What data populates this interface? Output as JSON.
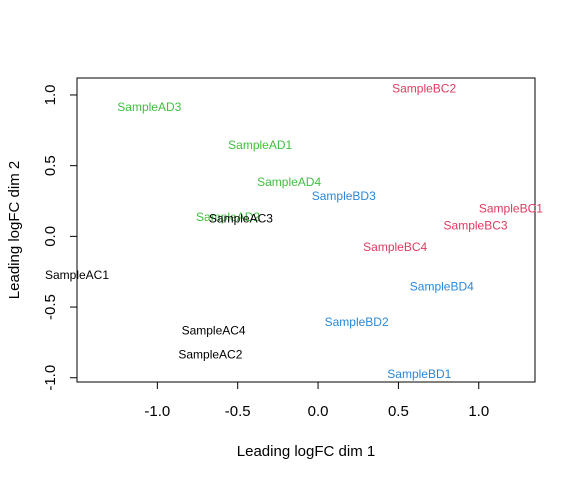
{
  "chart_data": {
    "type": "scatter",
    "title": "",
    "xlabel": "Leading logFC dim 1",
    "ylabel": "Leading logFC dim 2",
    "xlim": [
      -1.5,
      1.35
    ],
    "ylim": [
      -1.03,
      1.12
    ],
    "xticks": [
      "-1.0",
      "-0.5",
      "0.0",
      "0.5",
      "1.0"
    ],
    "yticks": [
      "-1.0",
      "-0.5",
      "0.0",
      "0.5",
      "1.0"
    ],
    "grid": false,
    "legend": "none",
    "colors": {
      "AC": "#000000",
      "AD": "#3fbf3f",
      "BC": "#df3a5f",
      "BD": "#2a88d8"
    },
    "points": [
      {
        "label": "SampleAD3",
        "x": -1.05,
        "y": 0.91,
        "group": "AD"
      },
      {
        "label": "SampleAD1",
        "x": -0.36,
        "y": 0.64,
        "group": "AD"
      },
      {
        "label": "SampleAD4",
        "x": -0.18,
        "y": 0.38,
        "group": "AD"
      },
      {
        "label": "SampleAD2",
        "x": -0.56,
        "y": 0.13,
        "group": "AD"
      },
      {
        "label": "SampleAC3",
        "x": -0.48,
        "y": 0.12,
        "group": "AC"
      },
      {
        "label": "SampleAC1",
        "x": -1.5,
        "y": -0.28,
        "group": "AC"
      },
      {
        "label": "SampleAC4",
        "x": -0.65,
        "y": -0.67,
        "group": "AC"
      },
      {
        "label": "SampleAC2",
        "x": -0.67,
        "y": -0.84,
        "group": "AC"
      },
      {
        "label": "SampleBC2",
        "x": 0.66,
        "y": 1.04,
        "group": "BC"
      },
      {
        "label": "SampleBC1",
        "x": 1.2,
        "y": 0.19,
        "group": "BC"
      },
      {
        "label": "SampleBC3",
        "x": 0.98,
        "y": 0.07,
        "group": "BC"
      },
      {
        "label": "SampleBC4",
        "x": 0.48,
        "y": -0.08,
        "group": "BC"
      },
      {
        "label": "SampleBD3",
        "x": 0.16,
        "y": 0.28,
        "group": "BD"
      },
      {
        "label": "SampleBD4",
        "x": 0.77,
        "y": -0.36,
        "group": "BD"
      },
      {
        "label": "SampleBD2",
        "x": 0.24,
        "y": -0.61,
        "group": "BD"
      },
      {
        "label": "SampleBD1",
        "x": 0.63,
        "y": -0.98,
        "group": "BD"
      }
    ]
  }
}
